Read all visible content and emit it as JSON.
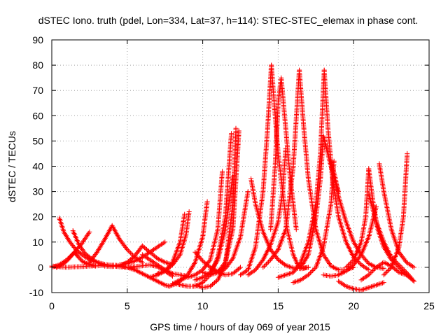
{
  "chart_data": {
    "type": "scatter",
    "title": "dSTEC Iono. truth (pdel, Lon=334, Lat=37, h=114): STEC-STEC_elemax in phase cont.",
    "xlabel": "GPS time / hours of day 069 of year 2015",
    "ylabel": "dSTEC  / TECUs",
    "xlim": [
      0,
      25
    ],
    "ylim": [
      -10,
      90
    ],
    "xticks": [
      0,
      5,
      10,
      15,
      20,
      25
    ],
    "yticks": [
      -10,
      0,
      10,
      20,
      30,
      40,
      50,
      60,
      70,
      80,
      90
    ],
    "grid": true,
    "legend": "none",
    "marker": "plus",
    "color": "#ff0000",
    "series": [
      {
        "x": [
          0.0,
          0.5,
          1.0,
          1.5,
          2.0,
          2.5,
          3.0,
          3.5,
          4.0,
          4.5,
          5.0,
          5.5,
          6.0,
          6.5,
          7.0,
          7.5,
          7.8,
          8.2,
          8.6,
          9.0
        ],
        "y": [
          0.5,
          0.2,
          0.0,
          0.2,
          0.3,
          0.5,
          0.6,
          0.8,
          0.9,
          0.7,
          0.0,
          -1.0,
          -2.5,
          -4.0,
          -5.5,
          -7.0,
          -7.5,
          -6.5,
          -5.0,
          -3.5
        ]
      },
      {
        "x": [
          0.5,
          0.8,
          1.2,
          1.6,
          2.0,
          2.5,
          3.0,
          3.5,
          4.0,
          4.5,
          5.0,
          5.5
        ],
        "y": [
          19.5,
          14.0,
          10.0,
          7.0,
          5.0,
          3.0,
          2.0,
          1.2,
          0.6,
          0.2,
          0.0,
          -0.3
        ]
      },
      {
        "x": [
          0.3,
          0.7,
          1.0,
          1.3,
          1.5,
          1.7,
          2.0,
          2.3,
          2.6,
          2.9
        ],
        "y": [
          0.0,
          1.0,
          2.5,
          4.5,
          6.0,
          4.5,
          2.5,
          1.5,
          1.0,
          0.5
        ]
      },
      {
        "x": [
          1.4,
          1.8,
          2.2,
          2.6,
          3.0,
          3.4
        ],
        "y": [
          14.5,
          9.0,
          5.5,
          3.5,
          2.0,
          1.0
        ]
      },
      {
        "x": [
          0.0,
          0.5,
          1.0,
          1.5,
          2.0,
          2.5
        ],
        "y": [
          0.0,
          1.0,
          3.0,
          6.0,
          9.5,
          14.0
        ]
      },
      {
        "x": [
          2.5,
          3.0,
          3.5,
          4.0,
          4.5,
          5.0,
          5.5,
          6.0
        ],
        "y": [
          2.0,
          6.0,
          11.0,
          16.5,
          11.0,
          7.0,
          4.0,
          2.0
        ]
      },
      {
        "x": [
          3.5,
          4.0,
          4.5,
          5.0,
          5.5,
          6.0,
          6.5,
          7.0,
          7.5,
          8.0
        ],
        "y": [
          0.5,
          0.3,
          0.6,
          2.0,
          4.5,
          8.5,
          6.0,
          3.5,
          2.0,
          1.0
        ]
      },
      {
        "x": [
          4.5,
          5.0,
          5.5,
          6.0,
          6.5,
          7.0,
          7.5
        ],
        "y": [
          1.0,
          1.5,
          2.5,
          4.0,
          6.0,
          8.0,
          10.0
        ]
      },
      {
        "x": [
          5.0,
          5.5,
          6.0,
          6.5,
          7.0,
          7.5,
          8.0
        ],
        "y": [
          0.0,
          0.3,
          0.6,
          1.0,
          0.3,
          -1.5,
          -3.5
        ]
      },
      {
        "x": [
          6.0,
          6.5,
          7.0,
          7.5,
          8.0,
          8.5,
          9.0
        ],
        "y": [
          5.0,
          3.0,
          1.0,
          -1.0,
          -2.5,
          -3.0,
          -3.5
        ]
      },
      {
        "x": [
          6.5,
          7.0,
          7.5,
          8.0,
          8.5,
          8.8
        ],
        "y": [
          -4.0,
          -3.0,
          -1.5,
          2.0,
          10.0,
          21.0
        ]
      },
      {
        "x": [
          7.0,
          7.5,
          8.0,
          8.5,
          8.9,
          9.1
        ],
        "y": [
          -2.5,
          -1.5,
          1.0,
          5.0,
          13.0,
          22.0
        ]
      },
      {
        "x": [
          8.0,
          8.5,
          9.0,
          9.5,
          10.0,
          10.3
        ],
        "y": [
          -6.5,
          -5.0,
          -3.0,
          2.0,
          12.0,
          26.0
        ]
      },
      {
        "x": [
          9.0,
          9.5,
          10.0,
          10.5,
          11.0,
          11.3
        ],
        "y": [
          -4.0,
          -3.0,
          -1.0,
          3.0,
          15.0,
          38.0
        ]
      },
      {
        "x": [
          9.5,
          10.0,
          10.5,
          11.0,
          11.5,
          12.0
        ],
        "y": [
          -5.0,
          -4.0,
          -2.0,
          3.0,
          15.0,
          36.0
        ]
      },
      {
        "x": [
          8.2,
          9.0,
          9.5,
          10.0,
          10.5,
          11.0,
          11.5,
          11.9
        ],
        "y": [
          -6.5,
          -7.5,
          -7.5,
          -6.0,
          -3.0,
          4.0,
          20.0,
          53.0
        ]
      },
      {
        "x": [
          9.5,
          10.0,
          10.5,
          11.0,
          11.5,
          12.0,
          12.2
        ],
        "y": [
          -7.0,
          -8.0,
          -7.5,
          -5.0,
          1.0,
          25.0,
          55.0
        ]
      },
      {
        "x": [
          10.0,
          10.5,
          11.0,
          11.5,
          12.0,
          12.4
        ],
        "y": [
          -2.0,
          -3.0,
          -2.0,
          2.0,
          15.0,
          54.0
        ]
      },
      {
        "x": [
          10.5,
          11.0,
          11.5,
          12.0,
          12.5,
          13.0
        ],
        "y": [
          -1.0,
          -1.5,
          -0.5,
          3.5,
          12.0,
          30.0
        ]
      },
      {
        "x": [
          9.5,
          10.0,
          10.5,
          11.0,
          11.5,
          12.0,
          12.5
        ],
        "y": [
          6.0,
          2.5,
          0.0,
          -2.0,
          -3.0,
          -2.5,
          0.0
        ]
      },
      {
        "x": [
          13.2,
          13.5,
          14.0,
          14.5,
          15.0,
          15.5,
          16.0,
          16.5,
          17.0
        ],
        "y": [
          35.0,
          25.0,
          14.0,
          7.0,
          3.0,
          0.8,
          -0.3,
          -0.5,
          0.0
        ]
      },
      {
        "x": [
          12.5,
          13.0,
          13.5,
          14.0,
          14.3,
          14.55
        ],
        "y": [
          -3.0,
          -1.0,
          8.0,
          30.0,
          55.0,
          80.0
        ]
      },
      {
        "x": [
          14.55,
          14.8,
          15.0,
          15.3,
          15.6,
          16.0,
          16.3,
          16.6,
          17.0
        ],
        "y": [
          80.0,
          60.0,
          45.0,
          30.0,
          15.0,
          5.0,
          1.0,
          -0.5,
          0.0
        ]
      },
      {
        "x": [
          13.0,
          13.5,
          14.0,
          14.5,
          15.0,
          15.3,
          15.5
        ],
        "y": [
          -3.0,
          -1.0,
          3.0,
          9.0,
          18.0,
          30.0,
          47.0
        ]
      },
      {
        "x": [
          14.5,
          14.8,
          15.0,
          15.2,
          15.5,
          15.8,
          16.2
        ],
        "y": [
          15.0,
          40.0,
          65.0,
          75.0,
          55.0,
          35.0,
          15.0
        ]
      },
      {
        "x": [
          14.0,
          14.5,
          15.0,
          15.5,
          16.0,
          16.4
        ],
        "y": [
          0.0,
          3.0,
          7.0,
          15.0,
          40.0,
          78.0
        ]
      },
      {
        "x": [
          16.4,
          16.7,
          17.0,
          17.5,
          18.0,
          18.5,
          19.0,
          19.5,
          20.0
        ],
        "y": [
          78.0,
          55.0,
          35.0,
          15.0,
          5.0,
          0.5,
          -1.0,
          -1.0,
          0.0
        ]
      },
      {
        "x": [
          15.0,
          15.5,
          16.0,
          16.5,
          17.0,
          17.5,
          17.8,
          18.05
        ],
        "y": [
          -4.0,
          -3.0,
          -2.0,
          2.0,
          10.0,
          25.0,
          45.0,
          78.0
        ]
      },
      {
        "x": [
          18.05,
          18.3,
          18.6,
          19.0,
          19.5,
          20.0,
          20.5,
          21.0
        ],
        "y": [
          78.0,
          55.0,
          35.0,
          20.0,
          10.0,
          4.0,
          1.0,
          -1.0
        ]
      },
      {
        "x": [
          16.5,
          17.0,
          17.5,
          17.8,
          18.0,
          18.5,
          19.0
        ],
        "y": [
          0.0,
          5.0,
          20.0,
          35.0,
          52.0,
          40.0,
          30.0
        ]
      },
      {
        "x": [
          18.5,
          18.8,
          19.0,
          19.5,
          20.0,
          20.5,
          21.0,
          21.5,
          22.0
        ],
        "y": [
          42.0,
          35.0,
          28.0,
          18.0,
          10.0,
          5.0,
          1.5,
          0.0,
          -0.5
        ]
      },
      {
        "x": [
          16.0,
          16.5,
          17.0,
          17.5,
          18.0,
          18.5,
          18.7
        ],
        "y": [
          -6.0,
          -5.0,
          -3.0,
          0.0,
          8.0,
          25.0,
          42.0
        ]
      },
      {
        "x": [
          18.0,
          18.5,
          19.0,
          19.5,
          20.0,
          20.5,
          21.0,
          21.5
        ],
        "y": [
          -3.0,
          -3.5,
          -3.0,
          -1.5,
          1.0,
          5.0,
          12.0,
          24.0
        ]
      },
      {
        "x": [
          19.0,
          19.5,
          20.0,
          20.5,
          21.0,
          21.5,
          22.0
        ],
        "y": [
          -5.5,
          -7.5,
          -8.5,
          -9.0,
          -8.0,
          -7.0,
          -6.0
        ]
      },
      {
        "x": [
          19.5,
          20.0,
          20.5,
          20.8,
          21.0
        ],
        "y": [
          0.0,
          3.0,
          10.0,
          20.0,
          39.0
        ]
      },
      {
        "x": [
          21.0,
          21.3,
          21.6,
          22.0,
          22.5,
          23.0,
          23.5,
          24.0
        ],
        "y": [
          39.0,
          25.0,
          15.0,
          8.0,
          3.0,
          0.0,
          -3.0,
          -5.5
        ]
      },
      {
        "x": [
          21.7,
          22.0,
          22.5,
          23.0,
          23.5,
          24.0
        ],
        "y": [
          41.0,
          30.0,
          15.0,
          6.0,
          2.0,
          0.0
        ]
      },
      {
        "x": [
          20.5,
          21.0,
          21.5,
          22.0,
          22.5,
          23.0,
          23.5
        ],
        "y": [
          -5.0,
          -3.0,
          0.0,
          2.0,
          0.5,
          -2.0,
          -3.0
        ]
      },
      {
        "x": [
          21.0,
          21.5,
          22.0,
          22.5,
          23.0,
          23.5,
          24.0
        ],
        "y": [
          29.0,
          18.0,
          10.0,
          4.0,
          1.0,
          -2.0,
          -5.5
        ]
      },
      {
        "x": [
          22.0,
          22.5,
          23.0,
          23.3,
          23.55
        ],
        "y": [
          -3.0,
          0.0,
          8.0,
          20.0,
          45.0
        ]
      }
    ]
  }
}
